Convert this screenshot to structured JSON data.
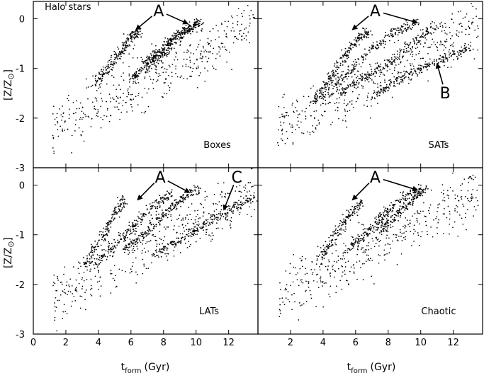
{
  "figure": {
    "xlabel_main": "t",
    "xlabel_sub": "form",
    "xlabel_unit": "(Gyr)",
    "ylabel_main": "[Z/Z",
    "ylabel_sun": "⊙",
    "ylabel_close": "]"
  },
  "chart_data": [
    {
      "type": "scatter",
      "panel": "top-left",
      "annotation_title": "Halo stars",
      "label": "Boxes",
      "arrow_labels": [
        "A"
      ],
      "xlim": [
        0,
        13.8
      ],
      "ylim": [
        -3,
        0.35
      ],
      "xticks": [
        0,
        2,
        4,
        6,
        8,
        10,
        12
      ],
      "yticks": [
        0,
        -1,
        -2,
        -3
      ],
      "tracks": [
        {
          "x": [
            3.8,
            4.6,
            5.3,
            5.9,
            6.5
          ],
          "y": [
            -1.3,
            -1.0,
            -0.7,
            -0.4,
            -0.25
          ]
        },
        {
          "x": [
            6.0,
            7.0,
            8.0,
            9.0,
            10.2
          ],
          "y": [
            -1.2,
            -0.95,
            -0.7,
            -0.35,
            -0.05
          ]
        },
        {
          "x": [
            6.8,
            7.6,
            8.4,
            9.2,
            10.3
          ],
          "y": [
            -0.9,
            -0.7,
            -0.45,
            -0.25,
            -0.05
          ]
        }
      ]
    },
    {
      "type": "scatter",
      "panel": "top-right",
      "label": "SATs",
      "arrow_labels": [
        "A",
        "B"
      ],
      "xlim": [
        0,
        13.8
      ],
      "ylim": [
        -3,
        0.35
      ],
      "xticks": [
        0,
        2,
        4,
        6,
        8,
        10,
        12
      ],
      "yticks": [
        0,
        -1,
        -2,
        -3
      ],
      "tracks": [
        {
          "x": [
            3.2,
            4.2,
            5.2,
            6.2,
            6.8
          ],
          "y": [
            -1.8,
            -1.3,
            -0.8,
            -0.4,
            -0.25
          ]
        },
        {
          "x": [
            4.0,
            5.5,
            7.0,
            8.5,
            10.0
          ],
          "y": [
            -1.6,
            -1.1,
            -0.6,
            -0.25,
            -0.05
          ]
        },
        {
          "x": [
            5.0,
            6.5,
            8.0,
            9.5,
            11.0
          ],
          "y": [
            -1.5,
            -1.2,
            -0.9,
            -0.5,
            -0.1
          ]
        },
        {
          "x": [
            7.0,
            8.5,
            10.0,
            11.5,
            13.2
          ],
          "y": [
            -1.6,
            -1.25,
            -1.0,
            -0.8,
            -0.55
          ]
        }
      ]
    },
    {
      "type": "scatter",
      "panel": "bottom-left",
      "label": "LATs",
      "arrow_labels": [
        "A",
        "C"
      ],
      "xlim": [
        0,
        13.8
      ],
      "ylim": [
        -3,
        0.35
      ],
      "xticks": [
        0,
        2,
        4,
        6,
        8,
        10,
        12
      ],
      "yticks": [
        0,
        -1,
        -2,
        -3
      ],
      "tracks": [
        {
          "x": [
            3.2,
            4.2,
            5.0,
            5.6
          ],
          "y": [
            -1.6,
            -1.1,
            -0.6,
            -0.3
          ]
        },
        {
          "x": [
            3.8,
            5.0,
            6.2,
            7.5,
            8.5
          ],
          "y": [
            -1.6,
            -1.2,
            -0.8,
            -0.4,
            -0.15
          ]
        },
        {
          "x": [
            5.5,
            6.8,
            8.0,
            9.0,
            10.2
          ],
          "y": [
            -1.3,
            -1.0,
            -0.6,
            -0.3,
            -0.05
          ]
        },
        {
          "x": [
            7.5,
            9.0,
            10.5,
            12.0,
            13.5
          ],
          "y": [
            -1.4,
            -1.1,
            -0.8,
            -0.5,
            -0.25
          ]
        }
      ]
    },
    {
      "type": "scatter",
      "panel": "bottom-right",
      "label": "Chaotic",
      "arrow_labels": [
        "A"
      ],
      "xlim": [
        0,
        13.8
      ],
      "ylim": [
        -3,
        0.35
      ],
      "xticks": [
        0,
        2,
        4,
        6,
        8,
        10,
        12
      ],
      "yticks": [
        0,
        -1,
        -2,
        -3
      ],
      "tracks": [
        {
          "x": [
            3.8,
            4.8,
            5.6,
            6.4
          ],
          "y": [
            -1.5,
            -1.0,
            -0.6,
            -0.3
          ]
        },
        {
          "x": [
            5.5,
            6.5,
            7.5,
            8.5,
            10.0
          ],
          "y": [
            -1.3,
            -1.0,
            -0.7,
            -0.35,
            -0.05
          ]
        },
        {
          "x": [
            7.5,
            8.5,
            9.5,
            10.3
          ],
          "y": [
            -0.95,
            -0.6,
            -0.3,
            -0.05
          ]
        }
      ]
    }
  ]
}
